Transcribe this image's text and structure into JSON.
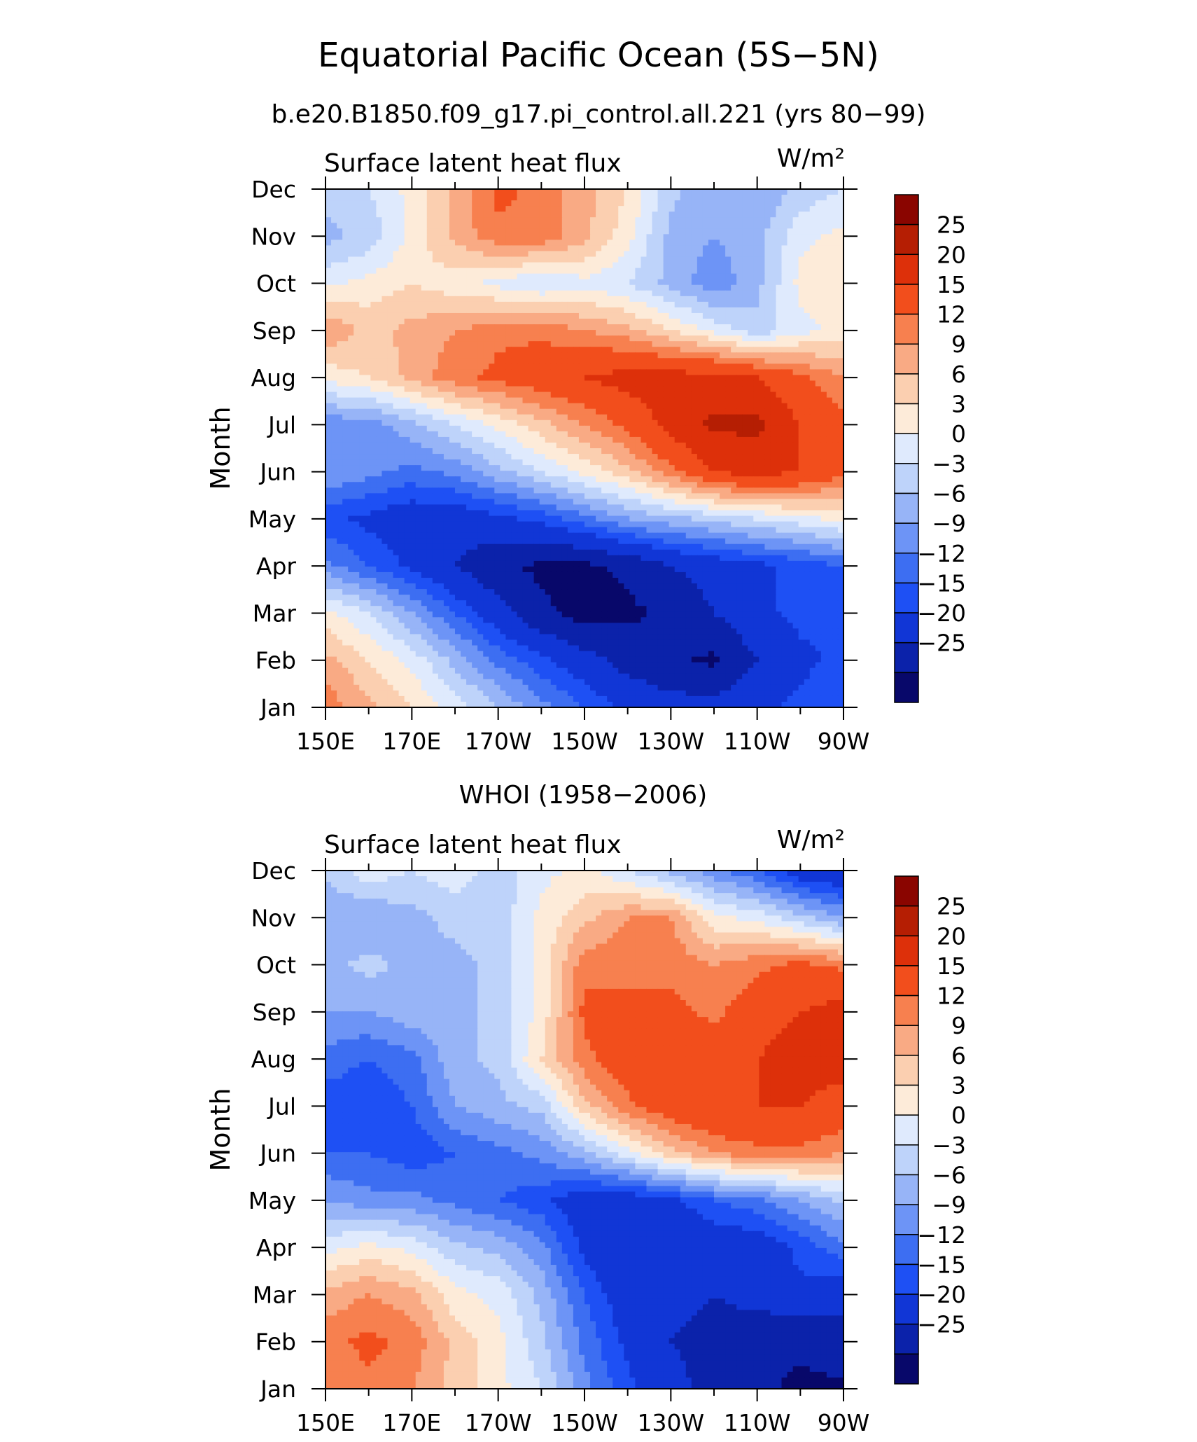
{
  "title": "Equatorial Pacific Ocean (5S−5N)",
  "chart_data": [
    {
      "type": "heatmap",
      "title": "b.e20.B1850.f09_g17.pi_control.all.221 (yrs 80−99)",
      "left_title": "Surface latent heat flux",
      "units": "W/m²",
      "ylabel": "Month",
      "xlabel": "",
      "x_tick_labels": [
        "150E",
        "170E",
        "170W",
        "150W",
        "130W",
        "110W",
        "90W"
      ],
      "y_tick_labels": [
        "Jan",
        "Feb",
        "Mar",
        "Apr",
        "May",
        "Jun",
        "Jul",
        "Aug",
        "Sep",
        "Oct",
        "Nov",
        "Dec"
      ],
      "x": [
        150,
        160,
        170,
        180,
        190,
        200,
        210,
        220,
        230,
        240,
        250,
        260,
        270
      ],
      "y": [
        "Jan",
        "Feb",
        "Mar",
        "Apr",
        "May",
        "Jun",
        "Jul",
        "Aug",
        "Sep",
        "Oct",
        "Nov",
        "Dec"
      ],
      "z": [
        [
          14,
          10,
          6,
          2,
          -3,
          -8,
          -12,
          -16,
          -18,
          -18,
          -16,
          -14,
          -12
        ],
        [
          10,
          6,
          2,
          -4,
          -10,
          -14,
          -18,
          -22,
          -24,
          -26,
          -20,
          -16,
          -14
        ],
        [
          4,
          0,
          -6,
          -12,
          -18,
          -24,
          -27,
          -26,
          -24,
          -20,
          -16,
          -14,
          -14
        ],
        [
          -8,
          -12,
          -16,
          -20,
          -24,
          -26,
          -26,
          -24,
          -20,
          -18,
          -16,
          -14,
          -12
        ],
        [
          -14,
          -16,
          -18,
          -18,
          -16,
          -14,
          -10,
          -6,
          -4,
          -2,
          0,
          2,
          4
        ],
        [
          -6,
          -8,
          -10,
          -8,
          -4,
          0,
          4,
          8,
          14,
          20,
          22,
          20,
          16
        ],
        [
          -8,
          -8,
          -4,
          0,
          4,
          8,
          12,
          16,
          22,
          26,
          26,
          20,
          16
        ],
        [
          4,
          6,
          10,
          14,
          16,
          18,
          20,
          22,
          22,
          22,
          20,
          16,
          12
        ],
        [
          12,
          8,
          10,
          12,
          14,
          14,
          12,
          10,
          6,
          2,
          -2,
          2,
          4
        ],
        [
          2,
          4,
          6,
          4,
          2,
          0,
          2,
          0,
          -4,
          -8,
          -4,
          4,
          6
        ],
        [
          -4,
          -2,
          4,
          10,
          14,
          14,
          10,
          4,
          -4,
          -6,
          -4,
          2,
          4
        ],
        [
          -2,
          0,
          4,
          10,
          16,
          14,
          10,
          6,
          -2,
          -6,
          -6,
          -2,
          0
        ]
      ]
    },
    {
      "type": "heatmap",
      "title": "WHOI (1958−2006)",
      "left_title": "Surface latent heat flux",
      "units": "W/m²",
      "ylabel": "Month",
      "xlabel": "",
      "x_tick_labels": [
        "150E",
        "170E",
        "170W",
        "150W",
        "130W",
        "110W",
        "90W"
      ],
      "y_tick_labels": [
        "Jan",
        "Feb",
        "Mar",
        "Apr",
        "May",
        "Jun",
        "Jul",
        "Aug",
        "Sep",
        "Oct",
        "Nov",
        "Dec"
      ],
      "x": [
        150,
        160,
        170,
        180,
        190,
        200,
        210,
        220,
        230,
        240,
        250,
        260,
        270
      ],
      "y": [
        "Jan",
        "Feb",
        "Mar",
        "Apr",
        "May",
        "Jun",
        "Jul",
        "Aug",
        "Sep",
        "Oct",
        "Nov",
        "Dec"
      ],
      "z": [
        [
          12,
          14,
          12,
          8,
          4,
          0,
          -8,
          -14,
          -18,
          -22,
          -24,
          -26,
          -26
        ],
        [
          14,
          16,
          14,
          8,
          4,
          -2,
          -10,
          -16,
          -20,
          -22,
          -24,
          -24,
          -22
        ],
        [
          10,
          12,
          10,
          4,
          2,
          -4,
          -12,
          -18,
          -18,
          -20,
          -18,
          -16,
          -18
        ],
        [
          2,
          4,
          2,
          -2,
          -4,
          -8,
          -16,
          -20,
          -20,
          -18,
          -18,
          -14,
          -10
        ],
        [
          -6,
          -8,
          -8,
          -10,
          -12,
          -14,
          -18,
          -18,
          -16,
          -12,
          -10,
          -6,
          -2
        ],
        [
          -12,
          -12,
          -14,
          -12,
          -10,
          -8,
          -4,
          2,
          8,
          12,
          14,
          14,
          12
        ],
        [
          -14,
          -15,
          -12,
          -6,
          -4,
          -2,
          8,
          14,
          18,
          20,
          20,
          20,
          18
        ],
        [
          -10,
          -12,
          -10,
          -4,
          -2,
          6,
          14,
          18,
          20,
          18,
          20,
          22,
          22
        ],
        [
          -6,
          -6,
          -4,
          -4,
          -2,
          4,
          16,
          16,
          16,
          14,
          18,
          20,
          22
        ],
        [
          -4,
          -2,
          -4,
          -4,
          -2,
          4,
          14,
          14,
          14,
          12,
          14,
          16,
          14
        ],
        [
          -6,
          -6,
          -4,
          -2,
          -2,
          4,
          8,
          12,
          12,
          4,
          2,
          -2,
          -6
        ],
        [
          -2,
          2,
          0,
          2,
          -2,
          2,
          4,
          0,
          -4,
          -8,
          -12,
          -18,
          -20
        ]
      ]
    }
  ],
  "colorbar": {
    "labels": [
      "25",
      "20",
      "15",
      "12",
      "9",
      "6",
      "3",
      "0",
      "−3",
      "−6",
      "−9",
      "−12",
      "−15",
      "−20",
      "−25"
    ],
    "levels": [
      -25,
      -20,
      -15,
      -12,
      -9,
      -6,
      -3,
      0,
      3,
      6,
      9,
      12,
      15,
      20,
      25
    ],
    "colors": [
      "#08086a",
      "#0b22aa",
      "#1136d6",
      "#1e50f4",
      "#3d6ef2",
      "#6d94f6",
      "#97b4f7",
      "#bed3fa",
      "#dfeafd",
      "#fdebd9",
      "#fbcfb0",
      "#f9aa84",
      "#f7804f",
      "#f24e1c",
      "#dd300a",
      "#b51e03",
      "#8a0500"
    ]
  }
}
